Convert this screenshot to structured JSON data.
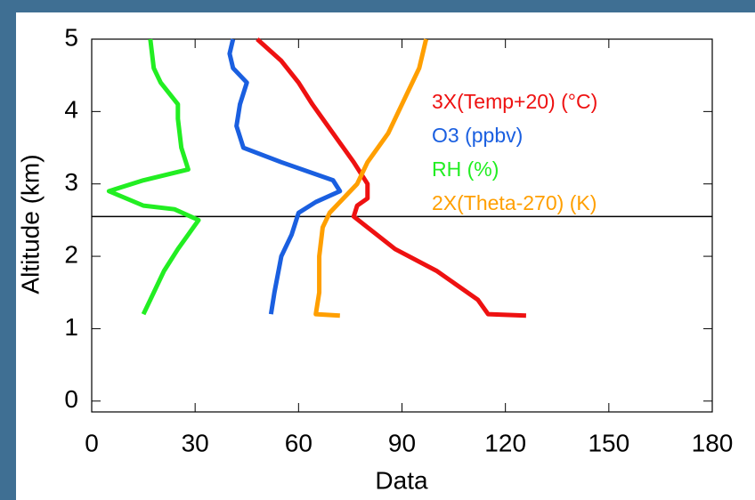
{
  "chart_data": {
    "type": "line",
    "xlabel": "Data",
    "ylabel": "Altitude (km)",
    "xlim": [
      0,
      180
    ],
    "ylim": [
      -0.15,
      5
    ],
    "xticks": [
      0,
      30,
      60,
      90,
      120,
      150,
      180
    ],
    "yticks": [
      0,
      1,
      2,
      3,
      4,
      5
    ],
    "reference_lines": [
      2.55
    ],
    "series": [
      {
        "name": "3X(Temp+20) (°C)",
        "color": "#ee1111",
        "x": [
          126,
          115,
          112,
          100,
          88,
          80,
          76,
          77,
          80,
          80,
          76,
          70,
          64,
          60,
          55,
          48
        ],
        "y": [
          1.18,
          1.2,
          1.4,
          1.8,
          2.1,
          2.4,
          2.55,
          2.7,
          2.8,
          3.0,
          3.3,
          3.7,
          4.1,
          4.4,
          4.7,
          5.0
        ]
      },
      {
        "name": "O3 (ppbv)",
        "color": "#1a5fe0",
        "x": [
          52,
          53,
          55,
          58,
          60,
          65,
          72,
          70,
          55,
          44,
          42,
          43,
          45,
          41,
          40,
          41
        ],
        "y": [
          1.2,
          1.5,
          2.0,
          2.3,
          2.6,
          2.75,
          2.9,
          3.05,
          3.3,
          3.5,
          3.8,
          4.1,
          4.4,
          4.6,
          4.8,
          5.0
        ]
      },
      {
        "name": "RH (%)",
        "color": "#22ee22",
        "x": [
          15,
          17,
          21,
          25,
          28,
          31,
          24,
          15,
          5,
          15,
          28,
          26,
          25,
          25,
          20,
          18,
          17
        ],
        "y": [
          1.2,
          1.4,
          1.8,
          2.1,
          2.3,
          2.5,
          2.65,
          2.7,
          2.9,
          3.05,
          3.2,
          3.5,
          3.9,
          4.1,
          4.4,
          4.6,
          5.0
        ]
      },
      {
        "name": "2X(Theta-270) (K)",
        "color": "#ff9f00",
        "x": [
          72,
          65,
          66,
          66,
          67,
          69,
          73,
          77,
          80,
          86,
          91,
          95,
          97
        ],
        "y": [
          1.18,
          1.2,
          1.5,
          2.0,
          2.4,
          2.6,
          2.8,
          3.0,
          3.3,
          3.7,
          4.2,
          4.6,
          5.0
        ]
      }
    ]
  }
}
